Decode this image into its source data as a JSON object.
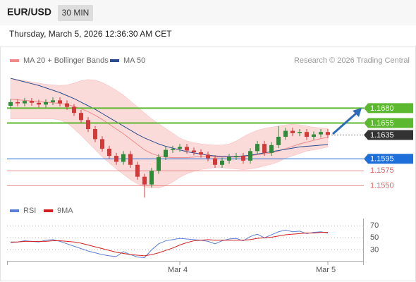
{
  "header": {
    "symbol": "EUR/USD",
    "timeframe": "30 MIN",
    "datetime": "Thursday, March 5, 2026 12:36:30 AM CET"
  },
  "chart_data": {
    "type": "candlestick",
    "credit": "Research © 2026 Trading Central",
    "x": [
      0,
      1,
      2,
      3,
      4,
      5,
      6,
      7,
      8,
      9,
      10,
      11,
      12,
      13,
      14,
      15,
      16,
      17,
      18,
      19,
      20,
      21,
      22,
      23,
      24,
      25,
      26,
      27,
      28,
      29,
      30,
      31,
      32,
      33,
      34,
      35,
      36,
      37,
      38,
      39,
      40,
      41,
      42,
      43,
      44,
      45
    ],
    "open": [
      1.1684,
      1.169,
      1.1688,
      1.1692,
      1.1689,
      1.1686,
      1.169,
      1.1693,
      1.1688,
      1.1682,
      1.1672,
      1.166,
      1.1645,
      1.1628,
      1.1612,
      1.16,
      1.159,
      1.1603,
      1.1585,
      1.1565,
      1.1552,
      1.1575,
      1.1598,
      1.161,
      1.1612,
      1.1615,
      1.1609,
      1.1606,
      1.1602,
      1.1596,
      1.1585,
      1.1592,
      1.1598,
      1.16,
      1.1592,
      1.1608,
      1.162,
      1.1605,
      1.1618,
      1.1632,
      1.1642,
      1.1638,
      1.164,
      1.1632,
      1.1636,
      1.164
    ],
    "high": [
      1.1695,
      1.1695,
      1.1697,
      1.1697,
      1.1694,
      1.1695,
      1.1698,
      1.1698,
      1.1693,
      1.1687,
      1.1677,
      1.1665,
      1.165,
      1.1633,
      1.1617,
      1.1605,
      1.1608,
      1.1608,
      1.159,
      1.157,
      1.158,
      1.1603,
      1.1615,
      1.1617,
      1.162,
      1.162,
      1.1614,
      1.1611,
      1.1607,
      1.1601,
      1.1597,
      1.1603,
      1.1605,
      1.1605,
      1.1613,
      1.1625,
      1.1625,
      1.1623,
      1.165,
      1.1647,
      1.1647,
      1.1645,
      1.1645,
      1.1641,
      1.1645,
      1.1645
    ],
    "low": [
      1.1679,
      1.1683,
      1.1683,
      1.1684,
      1.1681,
      1.1681,
      1.1685,
      1.1683,
      1.1677,
      1.1667,
      1.1655,
      1.164,
      1.1623,
      1.1607,
      1.1595,
      1.1585,
      1.1585,
      1.158,
      1.156,
      1.153,
      1.1547,
      1.157,
      1.1593,
      1.1605,
      1.1607,
      1.1604,
      1.1601,
      1.1597,
      1.1591,
      1.158,
      1.158,
      1.1587,
      1.1593,
      1.1587,
      1.1587,
      1.1603,
      1.16,
      1.16,
      1.1613,
      1.1627,
      1.1633,
      1.1633,
      1.1627,
      1.1627,
      1.1631,
      1.163
    ],
    "close": [
      1.169,
      1.1688,
      1.1692,
      1.1689,
      1.1686,
      1.169,
      1.1693,
      1.1688,
      1.1682,
      1.1672,
      1.166,
      1.1645,
      1.1628,
      1.1612,
      1.16,
      1.159,
      1.1603,
      1.1585,
      1.1565,
      1.1552,
      1.1575,
      1.1598,
      1.161,
      1.1612,
      1.1615,
      1.1609,
      1.1606,
      1.1602,
      1.1596,
      1.1585,
      1.1592,
      1.1598,
      1.16,
      1.1592,
      1.1608,
      1.162,
      1.1605,
      1.1618,
      1.1632,
      1.1642,
      1.1638,
      1.164,
      1.1632,
      1.1636,
      1.164,
      1.1635
    ],
    "up_color": "#2e8b3a",
    "down_color": "#d23a3a",
    "series": [
      {
        "name": "MA 20 + Bollinger Bands",
        "color": "#f08a8a",
        "band_color": "#fbdada",
        "values": [
          1.1695,
          1.1694,
          1.1693,
          1.1692,
          1.1691,
          1.169,
          1.1689,
          1.1688,
          1.1686,
          1.1683,
          1.1679,
          1.1674,
          1.1668,
          1.1661,
          1.1653,
          1.1645,
          1.1637,
          1.1628,
          1.1619,
          1.161,
          1.1604,
          1.16,
          1.1598,
          1.1597,
          1.1597,
          1.1597,
          1.1598,
          1.1599,
          1.1599,
          1.1598,
          1.1598,
          1.1598,
          1.1598,
          1.1598,
          1.16,
          1.1602,
          1.1603,
          1.1605,
          1.1608,
          1.1612,
          1.1616,
          1.162,
          1.1623,
          1.1626,
          1.1629,
          1.1631
        ],
        "upper": [
          1.173,
          1.1728,
          1.1726,
          1.1724,
          1.1722,
          1.172,
          1.1719,
          1.1718,
          1.1719,
          1.1722,
          1.1726,
          1.1728,
          1.1727,
          1.1723,
          1.1717,
          1.171,
          1.1702,
          1.1692,
          1.1682,
          1.1672,
          1.1662,
          1.1654,
          1.1646,
          1.1638,
          1.163,
          1.1625,
          1.1622,
          1.162,
          1.1619,
          1.1618,
          1.1618,
          1.162,
          1.1625,
          1.1632,
          1.1638,
          1.1643,
          1.1646,
          1.1648,
          1.165,
          1.1652,
          1.1653,
          1.1652,
          1.165,
          1.1648,
          1.1647,
          1.1646
        ],
        "lower": [
          1.1662,
          1.1662,
          1.1662,
          1.1662,
          1.1662,
          1.1662,
          1.1662,
          1.166,
          1.1655,
          1.1645,
          1.1634,
          1.1622,
          1.161,
          1.1598,
          1.1588,
          1.1578,
          1.1569,
          1.156,
          1.1553,
          1.1548,
          1.1546,
          1.1546,
          1.155,
          1.1556,
          1.1564,
          1.157,
          1.1574,
          1.1577,
          1.1579,
          1.158,
          1.158,
          1.1579,
          1.1578,
          1.1577,
          1.1578,
          1.158,
          1.1583,
          1.1586,
          1.159,
          1.1596,
          1.16,
          1.1604,
          1.1608,
          1.161,
          1.1612,
          1.1615
        ]
      },
      {
        "name": "MA 50",
        "color": "#2b4c8c",
        "values": [
          1.173,
          1.1727,
          1.1724,
          1.1721,
          1.1718,
          1.1714,
          1.171,
          1.1706,
          1.1701,
          1.1696,
          1.169,
          1.1684,
          1.1678,
          1.1671,
          1.1664,
          1.1657,
          1.165,
          1.1643,
          1.1636,
          1.163,
          1.1625,
          1.162,
          1.1616,
          1.1613,
          1.161,
          1.1607,
          1.1605,
          1.1603,
          1.1601,
          1.16,
          1.1599,
          1.1599,
          1.1599,
          1.16,
          1.1601,
          1.1603,
          1.1605,
          1.1607,
          1.1609,
          1.1611,
          1.1613,
          1.1615,
          1.1616,
          1.1617,
          1.1618,
          1.1619
        ]
      }
    ],
    "levels": [
      {
        "value": 1.168,
        "label": "1.1680",
        "color": "#5cb82e",
        "style": "box"
      },
      {
        "value": 1.1655,
        "label": "1.1655",
        "color": "#5cb82e",
        "style": "box"
      },
      {
        "value": 1.1635,
        "label": "1.1635",
        "color": "#333333",
        "style": "current"
      },
      {
        "value": 1.1595,
        "label": "1.1595",
        "color": "#1e6fd9",
        "style": "box"
      },
      {
        "value": 1.1575,
        "label": "1.1575",
        "color": "#e06060",
        "style": "text"
      },
      {
        "value": 1.155,
        "label": "1.1550",
        "color": "#e06060",
        "style": "text"
      }
    ],
    "xlim": [
      -0.5,
      50
    ],
    "xticks": [
      {
        "value": 24,
        "label": "Mar 4"
      },
      {
        "value": 45,
        "label": "Mar 5"
      }
    ],
    "ylim": [
      1.1528,
      1.1749
    ],
    "rsi": {
      "ylim": [
        14,
        82
      ],
      "yticks": [
        70,
        50,
        30
      ],
      "series": [
        {
          "name": "RSI",
          "color": "#5b7fd4",
          "values": [
            42,
            43,
            45,
            44,
            43,
            46,
            47,
            44,
            40,
            36,
            32,
            28,
            25,
            22,
            20,
            19,
            27,
            22,
            18,
            17,
            30,
            40,
            45,
            47,
            49,
            48,
            47,
            46,
            44,
            40,
            45,
            48,
            49,
            45,
            52,
            56,
            50,
            55,
            60,
            63,
            60,
            61,
            57,
            59,
            60,
            58
          ]
        },
        {
          "name": "9MA",
          "color": "#d42020",
          "values": [
            43,
            43,
            44,
            44,
            44,
            44,
            45,
            45,
            44,
            43,
            41,
            38,
            35,
            32,
            29,
            26,
            24,
            22,
            21,
            20,
            22,
            25,
            29,
            33,
            38,
            42,
            45,
            46,
            47,
            46,
            46,
            46,
            46,
            46,
            47,
            49,
            50,
            51,
            53,
            55,
            56,
            57,
            58,
            58,
            59,
            59
          ]
        }
      ]
    }
  }
}
